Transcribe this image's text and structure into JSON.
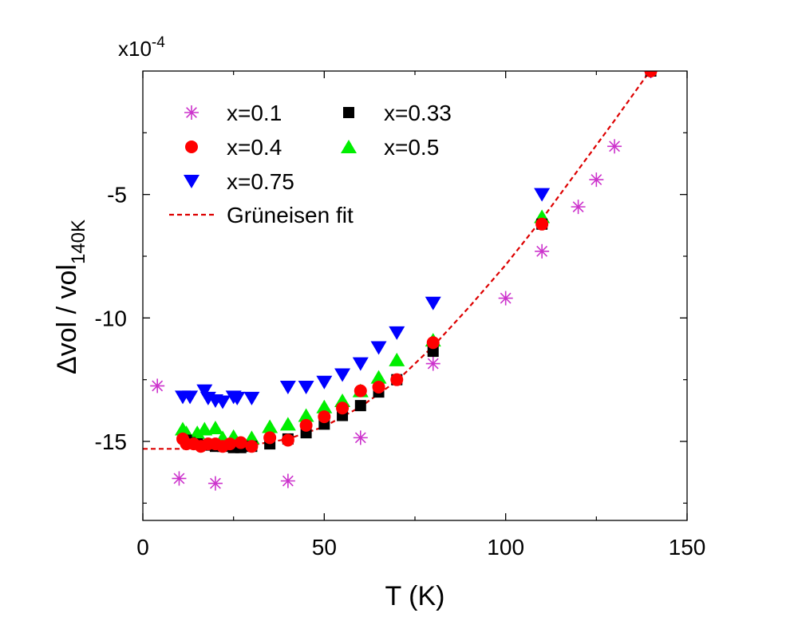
{
  "chart_data": {
    "type": "scatter",
    "xlabel": "T (K)",
    "ylabel": {
      "main": "Δvol / vol",
      "subscript": "140K"
    },
    "y_multiplier": {
      "base": "x10",
      "exponent": "-4"
    },
    "xlim": [
      0,
      150
    ],
    "ylim": [
      -18.2,
      0
    ],
    "xticks": [
      0,
      50,
      100,
      150
    ],
    "yticks": [
      -15,
      -10,
      -5
    ],
    "xtick_labels": [
      "0",
      "50",
      "100",
      "150"
    ],
    "ytick_labels": [
      "-15",
      "-10",
      "-5"
    ],
    "legend_position": "top-left",
    "series": [
      {
        "name": "x=0.1",
        "marker": "asterisk",
        "color": "#cc33cc",
        "x": [
          4,
          10,
          20,
          40,
          60,
          80,
          100,
          110,
          120,
          125,
          130,
          140
        ],
        "y": [
          -12.75,
          -16.5,
          -16.7,
          -16.6,
          -14.85,
          -11.85,
          -9.2,
          -7.3,
          -5.5,
          -4.4,
          -3.05,
          0
        ]
      },
      {
        "name": "x=0.33",
        "marker": "square",
        "color": "#000000",
        "x": [
          12,
          13,
          15,
          17,
          20,
          22,
          25,
          27,
          30,
          35,
          40,
          45,
          50,
          55,
          60,
          65,
          70,
          80,
          110,
          140
        ],
        "y": [
          -14.95,
          -15.05,
          -15.1,
          -15.15,
          -15.2,
          -15.2,
          -15.25,
          -15.25,
          -15.2,
          -15.1,
          -14.9,
          -14.65,
          -14.3,
          -13.95,
          -13.55,
          -13.0,
          -12.5,
          -11.35,
          -6.2,
          0
        ]
      },
      {
        "name": "x=0.4",
        "marker": "circle",
        "color": "#ff0000",
        "x": [
          11,
          12,
          14,
          16,
          18,
          20,
          22,
          24,
          27,
          30,
          35,
          40,
          45,
          50,
          55,
          60,
          65,
          70,
          80,
          110,
          140
        ],
        "y": [
          -14.9,
          -15.1,
          -15.1,
          -15.2,
          -15.1,
          -15.1,
          -15.2,
          -15.1,
          -15.05,
          -15.2,
          -14.85,
          -14.95,
          -14.35,
          -14.0,
          -13.65,
          -12.95,
          -12.8,
          -12.5,
          -11.0,
          -6.2,
          0
        ]
      },
      {
        "name": "x=0.5",
        "marker": "triangle-up",
        "color": "#00ee00",
        "x": [
          11,
          12,
          15,
          17,
          20,
          22,
          25,
          30,
          35,
          40,
          45,
          50,
          55,
          60,
          65,
          70,
          80,
          110
        ],
        "y": [
          -14.5,
          -14.65,
          -14.65,
          -14.5,
          -14.45,
          -14.85,
          -14.8,
          -14.85,
          -14.4,
          -14.3,
          -13.95,
          -13.6,
          -13.35,
          -12.95,
          -12.4,
          -11.7,
          -10.9,
          -5.9
        ]
      },
      {
        "name": "x=0.75",
        "marker": "triangle-down",
        "color": "#0000ff",
        "x": [
          11,
          13,
          17,
          18,
          20,
          22,
          25,
          26,
          30,
          40,
          45,
          50,
          55,
          60,
          65,
          70,
          80,
          110,
          140
        ],
        "y": [
          -13.2,
          -13.2,
          -12.95,
          -13.25,
          -13.35,
          -13.4,
          -13.2,
          -13.25,
          -13.25,
          -12.8,
          -12.8,
          -12.6,
          -12.3,
          -11.85,
          -11.2,
          -10.6,
          -9.4,
          -5.0,
          0
        ]
      }
    ],
    "fit": {
      "name": "Grüneisen fit",
      "style": "dashed",
      "color": "#dd0000",
      "x": [
        0,
        10,
        20,
        30,
        40,
        50,
        60,
        70,
        80,
        90,
        100,
        110,
        120,
        130,
        140
      ],
      "y": [
        -15.3,
        -15.3,
        -15.25,
        -15.15,
        -14.9,
        -14.4,
        -13.6,
        -12.55,
        -11.15,
        -9.55,
        -7.85,
        -6.0,
        -4.0,
        -2.0,
        0.05
      ]
    }
  }
}
